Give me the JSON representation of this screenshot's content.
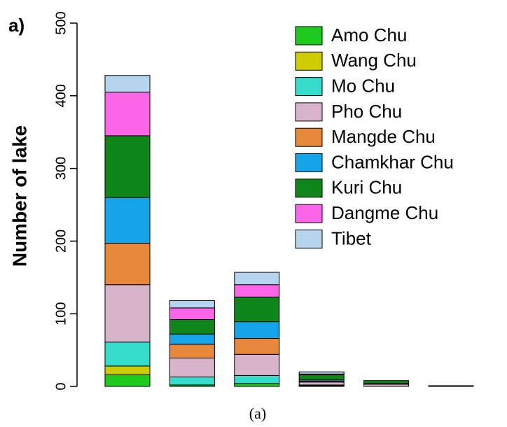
{
  "chart_data": {
    "type": "stacked_bar",
    "panel_label": "a)",
    "caption": "(a)",
    "ylabel": "Number of lake",
    "categories": [
      null,
      null,
      null,
      null,
      null,
      null
    ],
    "ylim": [
      0,
      500
    ],
    "yticks": [
      0,
      100,
      200,
      300,
      400,
      500
    ],
    "series": [
      {
        "name": "Amo Chu",
        "color": "#1ecb1e",
        "values": [
          16,
          2,
          4,
          1,
          0,
          0
        ]
      },
      {
        "name": "Wang Chu",
        "color": "#cccc00",
        "values": [
          12,
          0,
          0,
          0,
          0,
          0
        ]
      },
      {
        "name": "Mo Chu",
        "color": "#33dccb",
        "values": [
          33,
          11,
          11,
          1,
          0,
          0
        ]
      },
      {
        "name": "Pho Chu",
        "color": "#d8b4cc",
        "values": [
          79,
          26,
          29,
          4,
          3,
          0
        ]
      },
      {
        "name": "Mangde Chu",
        "color": "#e6873a",
        "values": [
          57,
          19,
          22,
          1,
          0,
          0
        ]
      },
      {
        "name": "Chamkhar Chu",
        "color": "#16a4e8",
        "values": [
          63,
          14,
          23,
          2,
          1,
          0
        ]
      },
      {
        "name": "Kuri Chu",
        "color": "#0f861a",
        "values": [
          85,
          20,
          34,
          7,
          4,
          1
        ]
      },
      {
        "name": "Dangme Chu",
        "color": "#fb66e8",
        "values": [
          60,
          16,
          17,
          1,
          0,
          0
        ]
      },
      {
        "name": "Tibet",
        "color": "#b5d4ee",
        "values": [
          23,
          10,
          17,
          3,
          0,
          0
        ]
      }
    ]
  }
}
